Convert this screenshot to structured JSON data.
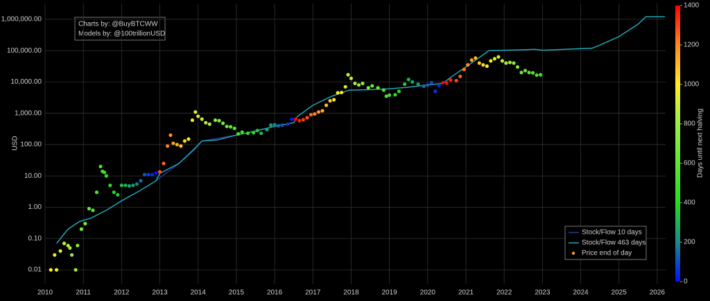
{
  "chart_data": {
    "type": "scatter",
    "y_label": "USD",
    "log_y": true,
    "grid": true,
    "background": "#000000",
    "annotation": [
      "Charts by: @BuyBTCWW",
      "Models by: @100trillionUSD"
    ],
    "legend_position": "lower right",
    "xlim": [
      2010,
      2026.22
    ],
    "xticks": [
      2010,
      2011,
      2012,
      2013,
      2014,
      2015,
      2016,
      2017,
      2018,
      2019,
      2020,
      2021,
      2022,
      2023,
      2024,
      2025,
      2026
    ],
    "ylim": [
      0.00362,
      3200000
    ],
    "yticks": [
      {
        "value": 0.01,
        "label": "0.01"
      },
      {
        "value": 0.1,
        "label": "0.10"
      },
      {
        "value": 1,
        "label": "1.00"
      },
      {
        "value": 10,
        "label": "10.00"
      },
      {
        "value": 100,
        "label": "100.00"
      },
      {
        "value": 1000,
        "label": "1,000.00"
      },
      {
        "value": 10000,
        "label": "10,000.00"
      },
      {
        "value": 100000,
        "label": "100,000.00"
      },
      {
        "value": 1000000,
        "label": "1,000,000.00"
      }
    ],
    "colorbar": {
      "label": "Days until next halving",
      "lim": [
        0,
        1400
      ],
      "ticks": [
        0,
        200,
        400,
        600,
        800,
        1000,
        1200,
        1400
      ],
      "colorscale": [
        [
          0,
          "#0010ff"
        ],
        [
          200,
          "#1a8a8a"
        ],
        [
          400,
          "#22dd22"
        ],
        [
          800,
          "#99ee44"
        ],
        [
          1000,
          "#ffee22"
        ],
        [
          1200,
          "#ff8822"
        ],
        [
          1400,
          "#ff0000"
        ]
      ]
    },
    "series": [
      {
        "name": "Stock/Flow 10 days",
        "kind": "line",
        "color": "#283593",
        "x": [
          2012.9,
          2013.5,
          2014.1,
          2015.0,
          2016.0,
          2016.5
        ],
        "values": [
          7,
          25,
          130,
          200,
          380,
          500
        ]
      },
      {
        "name": "Stock/Flow 463 days",
        "kind": "line",
        "color": "#1fa8b8",
        "x": [
          2010.3,
          2010.6,
          2010.9,
          2011.2,
          2011.6,
          2012.0,
          2012.5,
          2012.9,
          2013.0,
          2013.5,
          2013.9,
          2014.1,
          2014.5,
          2015.0,
          2015.5,
          2016.0,
          2016.5,
          2016.6,
          2017.0,
          2017.5,
          2017.95,
          2018.5,
          2019.0,
          2019.5,
          2020.0,
          2020.4,
          2020.6,
          2021.0,
          2021.6,
          2022.3,
          2022.8,
          2023.0,
          2024.3,
          2024.5,
          2025.0,
          2025.5,
          2025.7,
          2026.2
        ],
        "values": [
          0.07,
          0.2,
          0.35,
          0.45,
          0.8,
          1.6,
          3.5,
          7,
          12,
          25,
          70,
          130,
          140,
          200,
          270,
          380,
          500,
          800,
          1800,
          3500,
          5500,
          5700,
          6000,
          6800,
          8000,
          9000,
          14000,
          30000,
          100000,
          105000,
          110000,
          103000,
          120000,
          150000,
          280000,
          700000,
          1200000,
          1200000
        ]
      },
      {
        "name": "Price end of day",
        "kind": "points",
        "color": "#f0a030",
        "x": [
          2010.15,
          2010.25,
          2010.3,
          2010.4,
          2010.5,
          2010.6,
          2010.65,
          2010.7,
          2010.8,
          2010.85,
          2010.95,
          2011.05,
          2011.15,
          2011.25,
          2011.35,
          2011.45,
          2011.5,
          2011.55,
          2011.6,
          2011.7,
          2011.8,
          2011.9,
          2012.0,
          2012.1,
          2012.2,
          2012.3,
          2012.4,
          2012.5,
          2012.6,
          2012.7,
          2012.8,
          2012.9,
          2013.0,
          2013.1,
          2013.2,
          2013.28,
          2013.35,
          2013.45,
          2013.55,
          2013.65,
          2013.75,
          2013.85,
          2013.93,
          2014.0,
          2014.1,
          2014.2,
          2014.3,
          2014.45,
          2014.55,
          2014.65,
          2014.75,
          2014.85,
          2014.95,
          2015.05,
          2015.15,
          2015.3,
          2015.45,
          2015.55,
          2015.65,
          2015.8,
          2015.9,
          2016.0,
          2016.1,
          2016.2,
          2016.35,
          2016.45,
          2016.55,
          2016.65,
          2016.75,
          2016.85,
          2016.95,
          2017.05,
          2017.15,
          2017.25,
          2017.35,
          2017.45,
          2017.55,
          2017.65,
          2017.75,
          2017.85,
          2017.92,
          2018.0,
          2018.1,
          2018.2,
          2018.3,
          2018.45,
          2018.55,
          2018.7,
          2018.85,
          2018.92,
          2019.0,
          2019.15,
          2019.25,
          2019.4,
          2019.5,
          2019.6,
          2019.75,
          2019.9,
          2020.0,
          2020.1,
          2020.2,
          2020.3,
          2020.4,
          2020.5,
          2020.6,
          2020.75,
          2020.85,
          2020.95,
          2021.05,
          2021.15,
          2021.25,
          2021.35,
          2021.45,
          2021.55,
          2021.65,
          2021.75,
          2021.85,
          2021.95,
          2022.05,
          2022.15,
          2022.25,
          2022.35,
          2022.45,
          2022.55,
          2022.65,
          2022.75,
          2022.85,
          2022.95
        ],
        "values": [
          0.01,
          0.03,
          0.01,
          0.04,
          0.07,
          0.06,
          0.05,
          0.03,
          0.01,
          0.06,
          0.2,
          0.3,
          0.9,
          0.8,
          3,
          20,
          14,
          13,
          10,
          5,
          3,
          2.5,
          5,
          5,
          4.8,
          5,
          5.5,
          7,
          11,
          11,
          11,
          12.5,
          13.5,
          25,
          90,
          200,
          110,
          100,
          90,
          130,
          150,
          600,
          1100,
          800,
          650,
          500,
          450,
          600,
          580,
          480,
          380,
          370,
          330,
          220,
          250,
          230,
          240,
          280,
          230,
          300,
          420,
          430,
          400,
          420,
          450,
          650,
          650,
          580,
          620,
          720,
          900,
          950,
          1100,
          1200,
          1800,
          2500,
          2700,
          4500,
          4600,
          7000,
          17000,
          13000,
          9000,
          8000,
          9000,
          6500,
          7500,
          6500,
          5500,
          3500,
          3800,
          3900,
          5000,
          8500,
          12000,
          10000,
          8500,
          7300,
          8000,
          9500,
          5000,
          7500,
          9500,
          9200,
          11500,
          11000,
          15000,
          25000,
          35000,
          50000,
          58000,
          40000,
          35000,
          32000,
          47000,
          55000,
          63000,
          47000,
          40000,
          42000,
          40000,
          30000,
          20000,
          23000,
          20000,
          19500,
          16500,
          17000
        ],
        "color_values": [
          1007,
          971,
          953,
          916,
          880,
          843,
          825,
          807,
          770,
          752,
          715,
          679,
          642,
          606,
          569,
          533,
          515,
          496,
          478,
          442,
          405,
          369,
          332,
          296,
          259,
          223,
          186,
          150,
          113,
          77,
          40,
          4,
          1285,
          1248,
          1212,
          1183,
          1157,
          1121,
          1084,
          1048,
          1011,
          975,
          945,
          920,
          883,
          847,
          810,
          756,
          719,
          683,
          646,
          610,
          573,
          537,
          500,
          445,
          391,
          354,
          318,
          263,
          226,
          190,
          153,
          117,
          62,
          26,
          1391,
          1354,
          1318,
          1281,
          1245,
          1208,
          1172,
          1135,
          1099,
          1062,
          1026,
          989,
          953,
          916,
          891,
          861,
          825,
          788,
          752,
          697,
          661,
          606,
          551,
          526,
          496,
          442,
          405,
          350,
          314,
          277,
          223,
          168,
          131,
          95,
          58,
          22,
          1420,
          1387,
          1351,
          1296,
          1259,
          1223,
          1186,
          1150,
          1113,
          1077,
          1041,
          1004,
          967,
          931,
          895,
          858,
          821,
          785,
          748,
          712,
          675,
          639,
          602,
          566,
          529,
          493
        ]
      }
    ]
  }
}
